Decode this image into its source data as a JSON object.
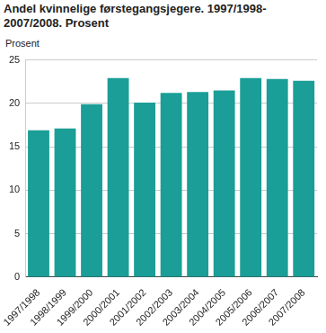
{
  "chart_data": {
    "type": "bar",
    "title": "Andel kvinnelige førstegangsjegere. 1997/1998-2007/2008. Prosent",
    "ylabel": "Prosent",
    "categories": [
      "1997/1998",
      "1998/1999",
      "1999/2000",
      "2000/2001",
      "2001/2002",
      "2002/2003",
      "2003/2004",
      "2004/2005",
      "2005/2006",
      "2006/2007",
      "2007/2008"
    ],
    "values": [
      16.9,
      17.1,
      19.9,
      22.9,
      20.1,
      21.2,
      21.3,
      21.5,
      22.9,
      22.8,
      22.6
    ],
    "color": "#1a9e97",
    "ylim": [
      0,
      25
    ],
    "yticks": [
      0,
      5,
      10,
      15,
      20,
      25
    ],
    "grid": true
  }
}
